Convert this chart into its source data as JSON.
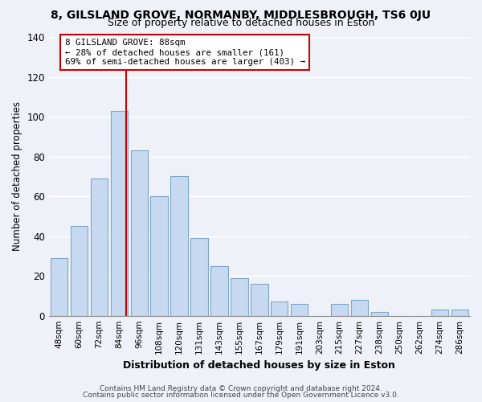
{
  "title": "8, GILSLAND GROVE, NORMANBY, MIDDLESBROUGH, TS6 0JU",
  "subtitle": "Size of property relative to detached houses in Eston",
  "xlabel": "Distribution of detached houses by size in Eston",
  "ylabel": "Number of detached properties",
  "bar_labels": [
    "48sqm",
    "60sqm",
    "72sqm",
    "84sqm",
    "96sqm",
    "108sqm",
    "120sqm",
    "131sqm",
    "143sqm",
    "155sqm",
    "167sqm",
    "179sqm",
    "191sqm",
    "203sqm",
    "215sqm",
    "227sqm",
    "238sqm",
    "250sqm",
    "262sqm",
    "274sqm",
    "286sqm"
  ],
  "bar_values": [
    29,
    45,
    69,
    103,
    83,
    60,
    70,
    39,
    25,
    19,
    16,
    7,
    6,
    0,
    6,
    8,
    2,
    0,
    0,
    3,
    3
  ],
  "bar_color": "#c6d9f0",
  "bar_edge_color": "#7ea6c8",
  "highlight_line_color": "#cc0000",
  "annotation_title": "8 GILSLAND GROVE: 88sqm",
  "annotation_line1": "← 28% of detached houses are smaller (161)",
  "annotation_line2": "69% of semi-detached houses are larger (403) →",
  "annotation_box_color": "#ffffff",
  "annotation_box_edge": "#cc0000",
  "ylim": [
    0,
    140
  ],
  "yticks": [
    0,
    20,
    40,
    60,
    80,
    100,
    120,
    140
  ],
  "footer1": "Contains HM Land Registry data © Crown copyright and database right 2024.",
  "footer2": "Contains public sector information licensed under the Open Government Licence v3.0.",
  "background_color": "#eef2f8"
}
